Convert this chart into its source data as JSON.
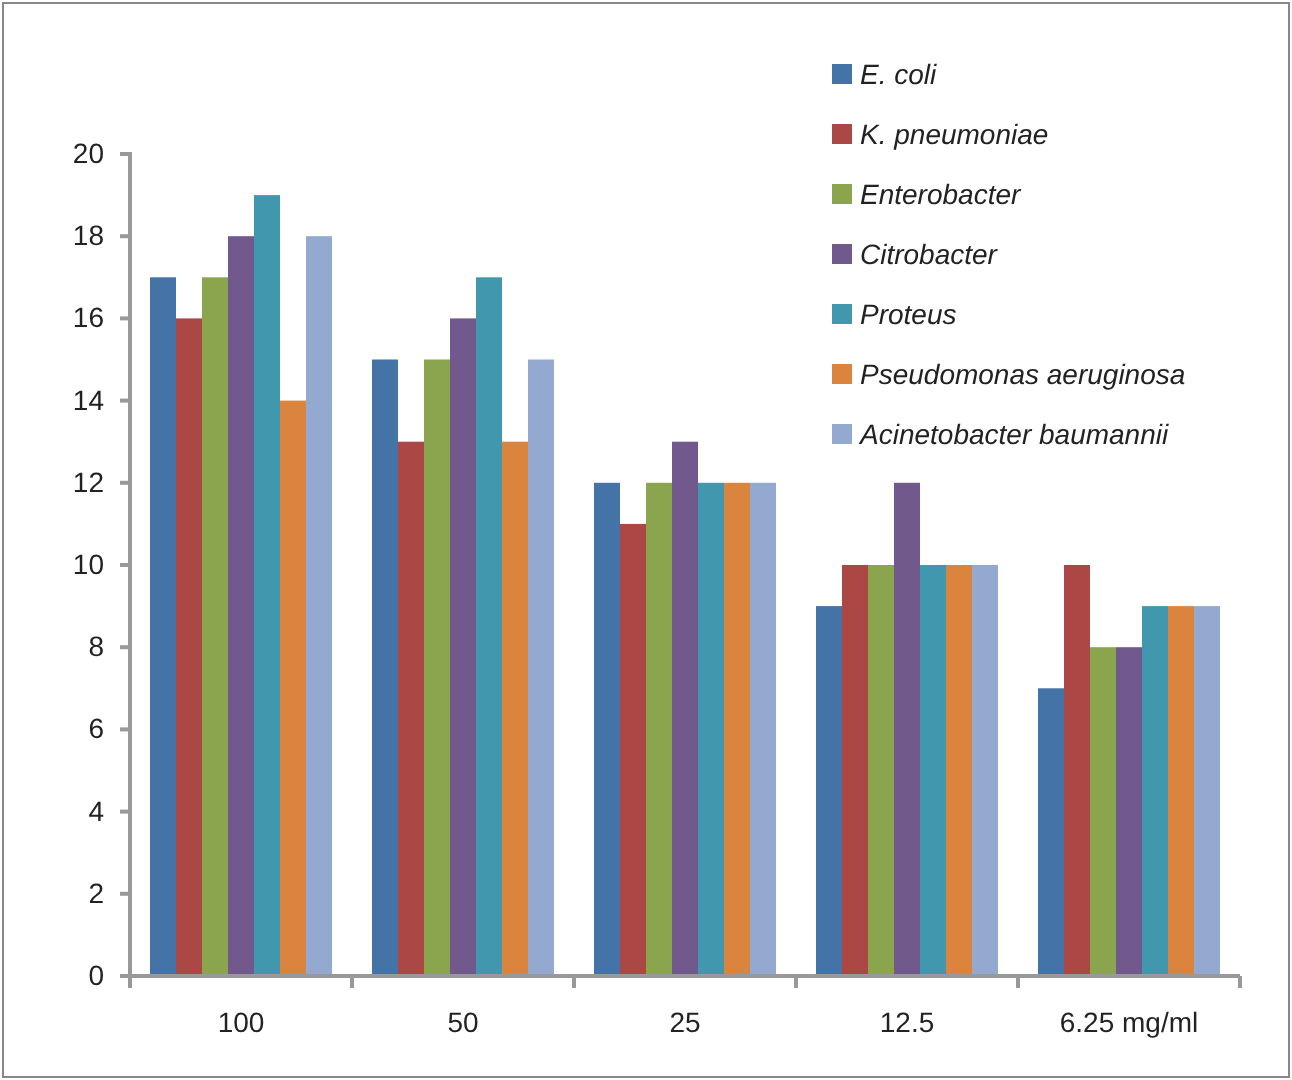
{
  "chart_data": {
    "type": "bar",
    "categories": [
      "100",
      "50",
      "25",
      "12.5",
      "6.25 mg/ml"
    ],
    "series": [
      {
        "name": "E. coli",
        "color": "#4473a8",
        "values": [
          17,
          15,
          12,
          9,
          7
        ]
      },
      {
        "name": "K. pneumoniae",
        "color": "#ab4744",
        "values": [
          16,
          13,
          11,
          10,
          10
        ]
      },
      {
        "name": "Enterobacter",
        "color": "#8aa54d",
        "values": [
          17,
          15,
          12,
          10,
          8
        ]
      },
      {
        "name": "Citrobacter",
        "color": "#71598d",
        "values": [
          18,
          16,
          13,
          12,
          8
        ]
      },
      {
        "name": "Proteus",
        "color": "#4198ae",
        "values": [
          19,
          17,
          12,
          10,
          9
        ]
      },
      {
        "name": "Pseudomonas aeruginosa",
        "color": "#db843d",
        "values": [
          14,
          13,
          12,
          10,
          9
        ]
      },
      {
        "name": "Acinetobacter baumannii",
        "color": "#93a9cf",
        "values": [
          18,
          15,
          12,
          10,
          9
        ]
      }
    ],
    "ylim": [
      0,
      20
    ],
    "yticks": [
      0,
      2,
      4,
      6,
      8,
      10,
      12,
      14,
      16,
      18,
      20
    ],
    "grid": false,
    "legend": "top right"
  }
}
